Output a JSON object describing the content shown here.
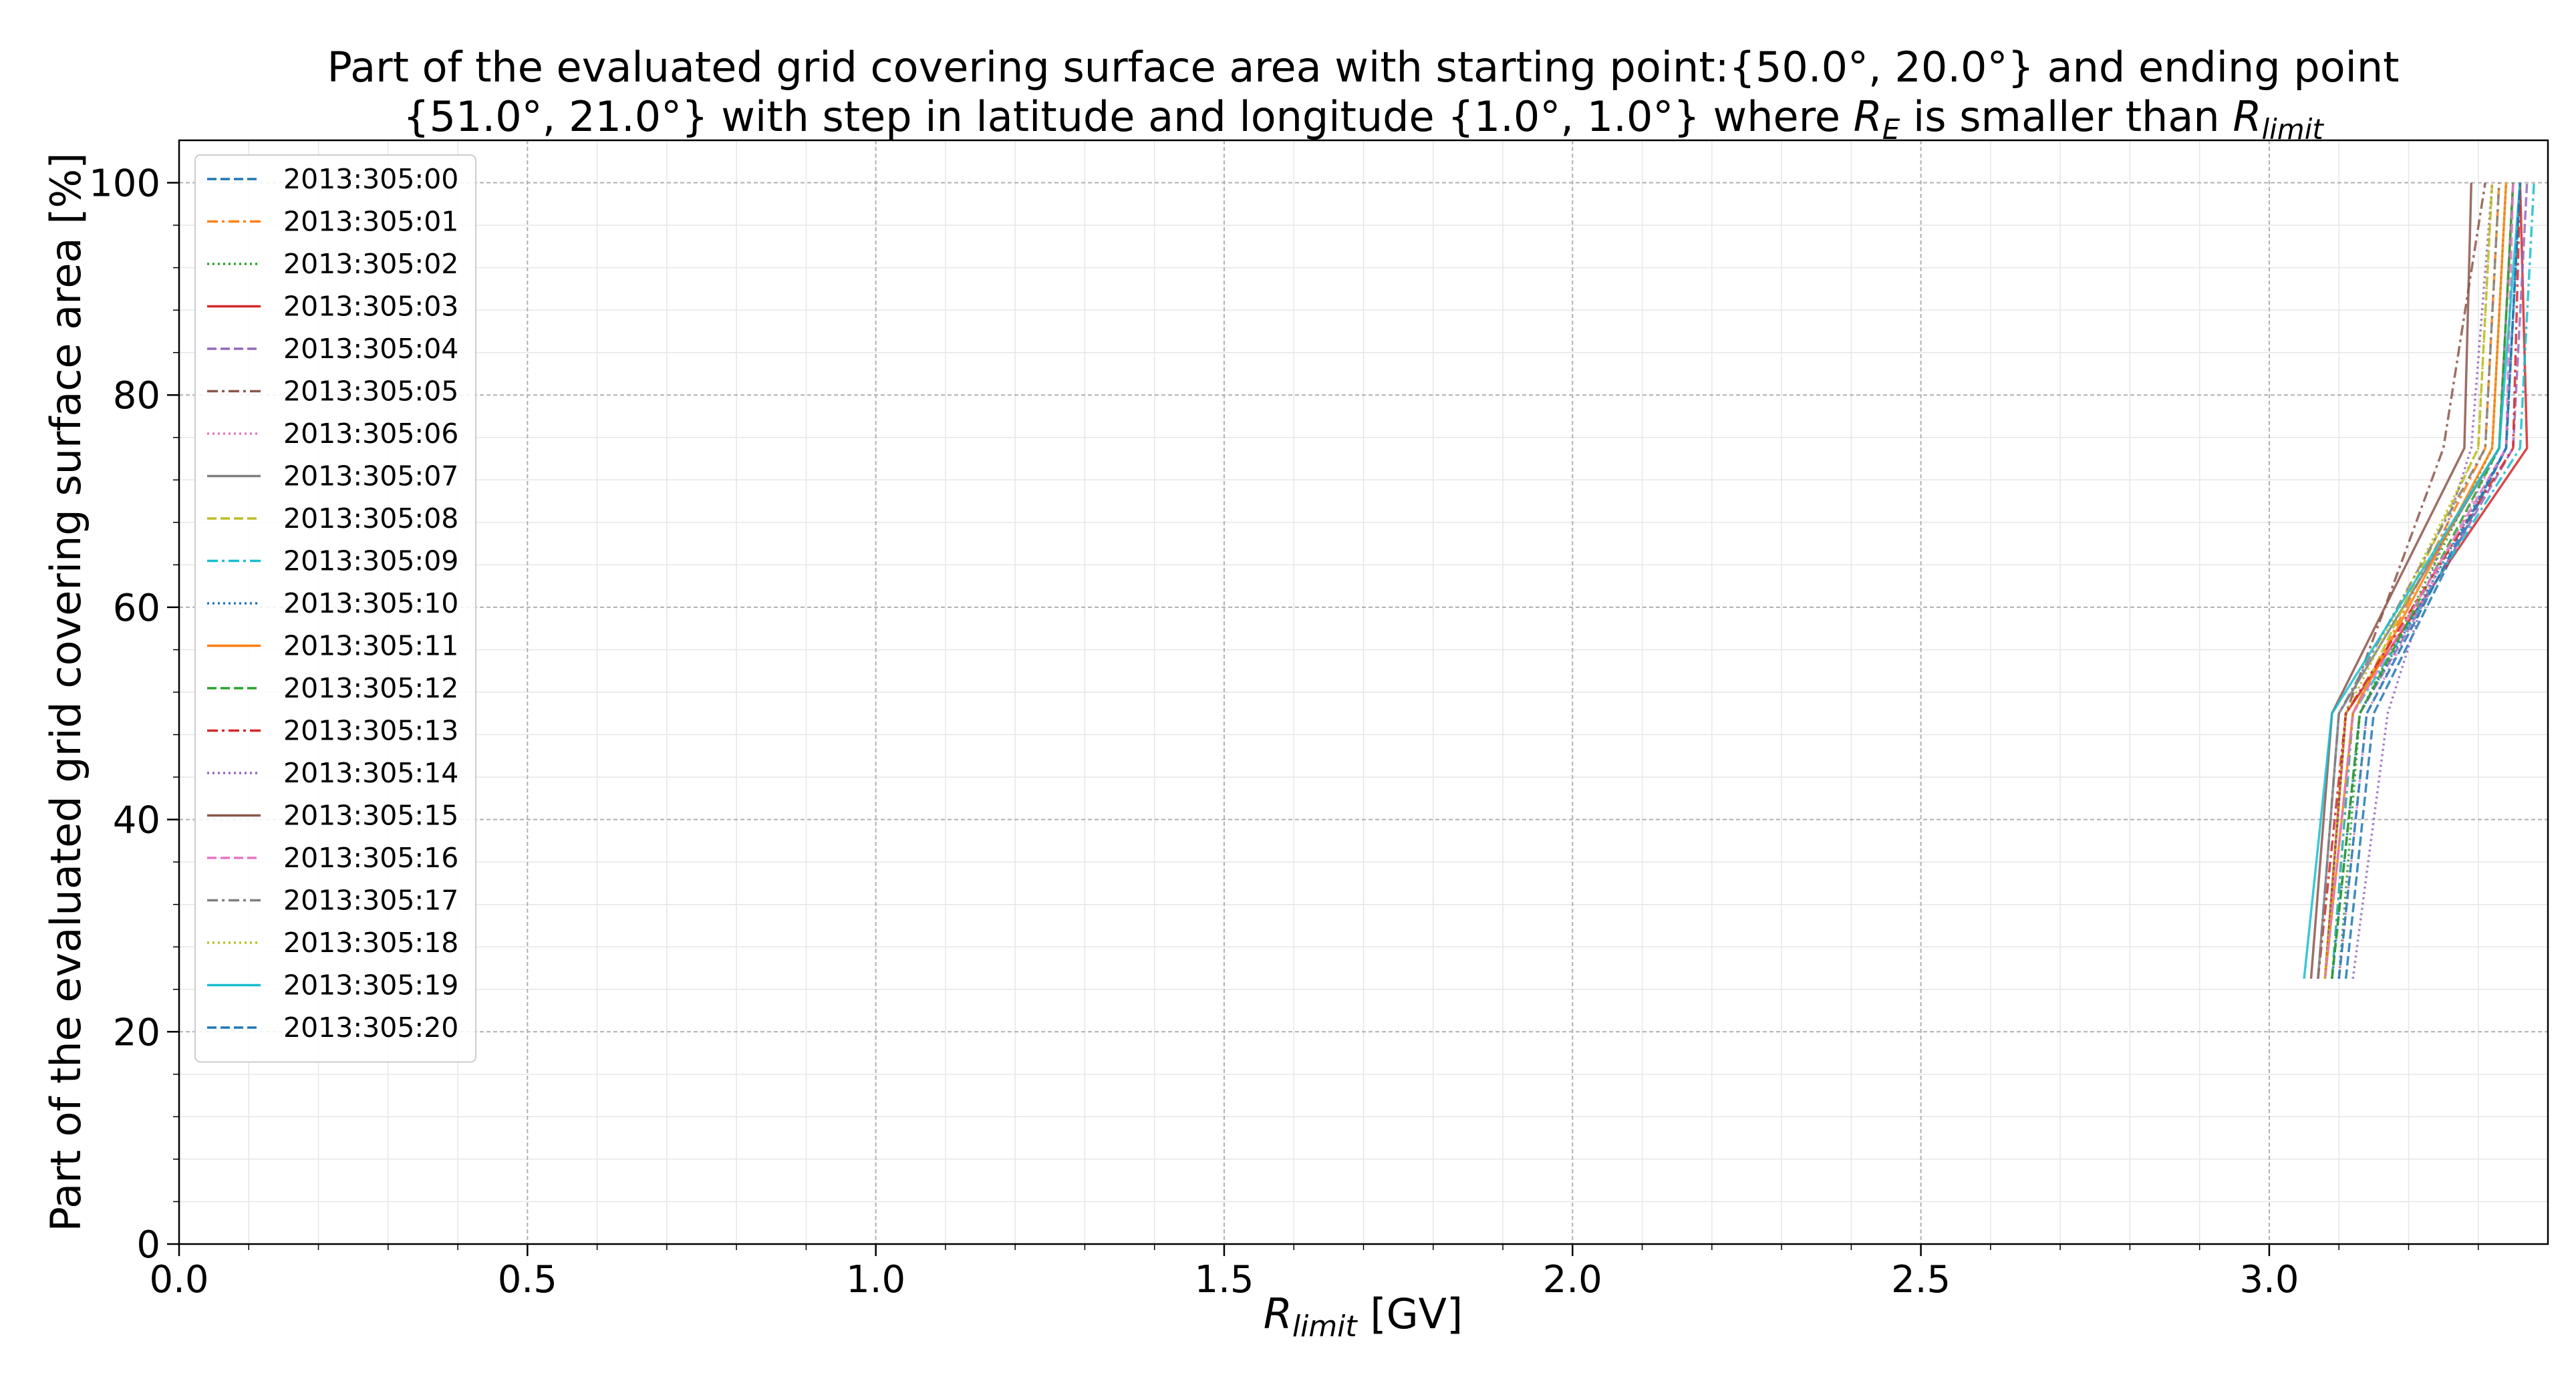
{
  "chart_data": {
    "type": "line",
    "title": {
      "line1": "Part of the evaluated grid covering surface area with starting point:{50.0°, 20.0°} and ending point",
      "line2_pre": "{51.0°, 21.0°} with step in latitude and longitude {1.0°, 1.0°} where ",
      "r_symbol": "R",
      "e_sub": "E",
      "mid": " is smaller than ",
      "limit_sub": "limit"
    },
    "xlabel": {
      "symbol": "R",
      "sub": "limit",
      "unit": " [GV]"
    },
    "ylabel": "Part of the evaluated grid covering surface area  [%]",
    "xlim": [
      0.0,
      3.4
    ],
    "ylim": [
      0,
      104
    ],
    "xticks": [
      0.0,
      0.5,
      1.0,
      1.5,
      2.0,
      2.5,
      3.0
    ],
    "xtick_labels": [
      "0.0",
      "0.5",
      "1.0",
      "1.5",
      "2.0",
      "2.5",
      "3.0"
    ],
    "yticks": [
      0,
      20,
      40,
      60,
      80,
      100
    ],
    "ytick_labels": [
      "0",
      "20",
      "40",
      "60",
      "80",
      "100"
    ],
    "grid": true,
    "legend_position": "upper-left",
    "series": [
      {
        "name": "2013:305:00",
        "color": "#1f77b4",
        "dash": "dashed",
        "x": [
          3.11,
          3.15,
          3.34,
          3.36
        ],
        "y": [
          25,
          50,
          75,
          100
        ]
      },
      {
        "name": "2013:305:01",
        "color": "#ff7f0e",
        "dash": "dashdot",
        "x": [
          3.09,
          3.12,
          3.31,
          3.33
        ],
        "y": [
          25,
          50,
          75,
          100
        ]
      },
      {
        "name": "2013:305:02",
        "color": "#2ca02c",
        "dash": "dotted",
        "x": [
          3.1,
          3.13,
          3.32,
          3.34
        ],
        "y": [
          25,
          50,
          75,
          100
        ]
      },
      {
        "name": "2013:305:03",
        "color": "#d62728",
        "dash": "solid",
        "x": [
          3.08,
          3.11,
          3.37,
          3.36
        ],
        "y": [
          25,
          50,
          75,
          100
        ]
      },
      {
        "name": "2013:305:04",
        "color": "#9467bd",
        "dash": "dashed",
        "x": [
          3.09,
          3.13,
          3.35,
          3.37
        ],
        "y": [
          25,
          50,
          75,
          100
        ]
      },
      {
        "name": "2013:305:05",
        "color": "#8c564b",
        "dash": "dashdot",
        "x": [
          3.08,
          3.11,
          3.25,
          3.31
        ],
        "y": [
          25,
          50,
          75,
          100
        ]
      },
      {
        "name": "2013:305:06",
        "color": "#e377c2",
        "dash": "dotted",
        "x": [
          3.1,
          3.14,
          3.33,
          3.35
        ],
        "y": [
          25,
          50,
          75,
          100
        ]
      },
      {
        "name": "2013:305:07",
        "color": "#7f7f7f",
        "dash": "solid",
        "x": [
          3.07,
          3.1,
          3.33,
          3.35
        ],
        "y": [
          25,
          50,
          75,
          100
        ]
      },
      {
        "name": "2013:305:08",
        "color": "#bcbd22",
        "dash": "dashed",
        "x": [
          3.08,
          3.12,
          3.3,
          3.32
        ],
        "y": [
          25,
          50,
          75,
          100
        ]
      },
      {
        "name": "2013:305:09",
        "color": "#17becf",
        "dash": "dashdot",
        "x": [
          3.09,
          3.12,
          3.36,
          3.38
        ],
        "y": [
          25,
          50,
          75,
          100
        ]
      },
      {
        "name": "2013:305:10",
        "color": "#1f77b4",
        "dash": "dotted",
        "x": [
          3.09,
          3.13,
          3.34,
          3.36
        ],
        "y": [
          25,
          50,
          75,
          100
        ]
      },
      {
        "name": "2013:305:11",
        "color": "#ff7f0e",
        "dash": "solid",
        "x": [
          3.08,
          3.12,
          3.32,
          3.34
        ],
        "y": [
          25,
          50,
          75,
          100
        ]
      },
      {
        "name": "2013:305:12",
        "color": "#2ca02c",
        "dash": "dashed",
        "x": [
          3.09,
          3.13,
          3.33,
          3.35
        ],
        "y": [
          25,
          50,
          75,
          100
        ]
      },
      {
        "name": "2013:305:13",
        "color": "#d62728",
        "dash": "dashdot",
        "x": [
          3.07,
          3.11,
          3.35,
          3.36
        ],
        "y": [
          25,
          50,
          75,
          100
        ]
      },
      {
        "name": "2013:305:14",
        "color": "#9467bd",
        "dash": "dotted",
        "x": [
          3.12,
          3.17,
          3.29,
          3.32
        ],
        "y": [
          25,
          50,
          75,
          100
        ]
      },
      {
        "name": "2013:305:15",
        "color": "#8c564b",
        "dash": "solid",
        "x": [
          3.06,
          3.09,
          3.28,
          3.29
        ],
        "y": [
          25,
          50,
          75,
          100
        ]
      },
      {
        "name": "2013:305:16",
        "color": "#e377c2",
        "dash": "dashed",
        "x": [
          3.08,
          3.12,
          3.34,
          3.35
        ],
        "y": [
          25,
          50,
          75,
          100
        ]
      },
      {
        "name": "2013:305:17",
        "color": "#7f7f7f",
        "dash": "dashdot",
        "x": [
          3.07,
          3.1,
          3.31,
          3.33
        ],
        "y": [
          25,
          50,
          75,
          100
        ]
      },
      {
        "name": "2013:305:18",
        "color": "#bcbd22",
        "dash": "dotted",
        "x": [
          3.08,
          3.11,
          3.3,
          3.32
        ],
        "y": [
          25,
          50,
          75,
          100
        ]
      },
      {
        "name": "2013:305:19",
        "color": "#17becf",
        "dash": "solid",
        "x": [
          3.05,
          3.09,
          3.33,
          3.36
        ],
        "y": [
          25,
          50,
          75,
          100
        ]
      },
      {
        "name": "2013:305:20",
        "color": "#1f77b4",
        "dash": "dashed",
        "x": [
          3.1,
          3.14,
          3.34,
          3.36
        ],
        "y": [
          25,
          50,
          75,
          100
        ]
      }
    ]
  }
}
